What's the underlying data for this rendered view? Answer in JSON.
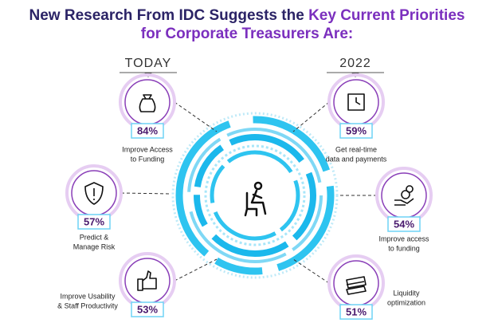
{
  "title": {
    "line1_dark": "New Research From IDC Suggests the",
    "line1_accent": "Key Current Priorities",
    "line2": "for Corporate Treasurers Are:"
  },
  "columns": {
    "left": "TODAY",
    "right": "2022"
  },
  "items": [
    {
      "percent": "84%",
      "label": [
        "Improve Access",
        "to Funding"
      ]
    },
    {
      "percent": "57%",
      "label": [
        "Predict &",
        "Manage Risk"
      ]
    },
    {
      "percent": "53%",
      "label": [
        "Improve Usability",
        "& Staff Productivity"
      ]
    },
    {
      "percent": "59%",
      "label": [
        "Get real-time",
        "data and payments"
      ]
    },
    {
      "percent": "54%",
      "label": [
        "Improve access",
        "to funding"
      ]
    },
    {
      "percent": "51%",
      "label": [
        "Liquidity",
        "optimization"
      ]
    }
  ]
}
